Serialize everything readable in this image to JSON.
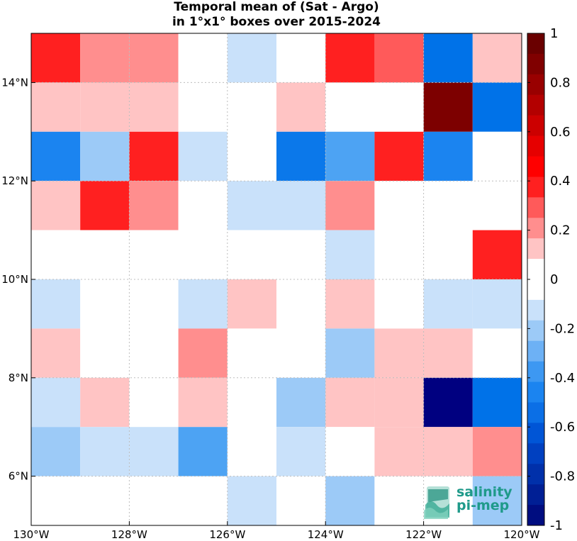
{
  "chart_data": {
    "type": "heatmap",
    "title": "Temporal mean of (Sat - Argo)",
    "subtitle": "in 1°x1° boxes over 2015-2024",
    "x_tick_labels": [
      "130°W",
      "128°W",
      "126°W",
      "124°W",
      "122°W",
      "120°W"
    ],
    "x_ticks": [
      -130,
      -128,
      -126,
      -124,
      -122,
      -120
    ],
    "y_tick_labels": [
      "6°N",
      "8°N",
      "10°N",
      "12°N",
      "14°N"
    ],
    "y_ticks": [
      6,
      8,
      10,
      12,
      14
    ],
    "xlim": [
      -130,
      -120
    ],
    "ylim": [
      5,
      15
    ],
    "grid": true,
    "cell_lon_edges": [
      -130,
      -129,
      -128,
      -127,
      -126,
      -125,
      -124,
      -123,
      -122,
      -121,
      -120
    ],
    "cell_lat_edges_top_down": [
      15,
      14,
      13,
      12,
      11,
      10,
      9,
      8,
      7,
      6,
      5
    ],
    "values": [
      [
        0.4,
        0.25,
        0.25,
        0,
        -0.1,
        0,
        0.4,
        0.35,
        -0.55,
        0.15
      ],
      [
        0.15,
        0.15,
        0.15,
        0,
        0,
        0.15,
        0,
        0,
        0.95,
        -0.55
      ],
      [
        -0.45,
        -0.25,
        0.4,
        -0.1,
        0,
        -0.5,
        -0.35,
        0.4,
        -0.45,
        0
      ],
      [
        0.15,
        0.4,
        0.25,
        0,
        -0.1,
        -0.1,
        0.25,
        0,
        0,
        0
      ],
      [
        0,
        0,
        0,
        0,
        0,
        0,
        -0.1,
        0,
        0,
        0.4
      ],
      [
        -0.1,
        0,
        0,
        -0.1,
        0.15,
        0,
        0.15,
        0,
        -0.1,
        -0.1
      ],
      [
        0.15,
        0,
        0,
        0.25,
        0,
        0,
        -0.25,
        0.15,
        0.15,
        0
      ],
      [
        -0.1,
        0.15,
        0,
        0.15,
        0,
        -0.25,
        0.15,
        0.15,
        -0.95,
        -0.55
      ],
      [
        -0.25,
        -0.1,
        -0.1,
        -0.35,
        0,
        -0.1,
        0,
        0.15,
        0.15,
        0.25
      ],
      [
        0,
        0,
        0,
        0,
        -0.1,
        0,
        -0.25,
        0,
        0,
        -0.25
      ]
    ],
    "colorbar": {
      "range": [
        -1,
        1
      ],
      "tick_values": [
        1,
        0.8,
        0.6,
        0.4,
        0.2,
        0,
        -0.2,
        -0.4,
        -0.6,
        -0.8,
        -1
      ],
      "tick_labels": [
        "1",
        "0.8",
        "0.6",
        "0.4",
        "0.2",
        "0",
        "-0.2",
        "-0.4",
        "-0.6",
        "-0.8",
        "-1"
      ],
      "colors_top_down": [
        "#6a0000",
        "#800000",
        "#990000",
        "#b30000",
        "#cc0000",
        "#e60000",
        "#ff0000",
        "#ff2020",
        "#ff5a5a",
        "#ff8e8e",
        "#ffc4c4",
        "#ffffff",
        "#ffffff",
        "#c9e1fa",
        "#9ccaf7",
        "#6db1f5",
        "#3d98f2",
        "#1b84f0",
        "#0b6fe6",
        "#0055d6",
        "#0040c0",
        "#0030aa",
        "#001f95",
        "#000d80"
      ],
      "color_of_value": [
        {
          "value": 0.95,
          "color": "#7d0000"
        },
        {
          "value": 0.4,
          "color": "#ff2020"
        },
        {
          "value": 0.35,
          "color": "#ff5a5a"
        },
        {
          "value": 0.25,
          "color": "#ff8e8e"
        },
        {
          "value": 0.15,
          "color": "#ffc4c4"
        },
        {
          "value": 0,
          "color": "#ffffff"
        },
        {
          "value": -0.1,
          "color": "#c9e1fa"
        },
        {
          "value": -0.25,
          "color": "#9ccaf7"
        },
        {
          "value": -0.35,
          "color": "#4da3f3"
        },
        {
          "value": -0.45,
          "color": "#1b84f0"
        },
        {
          "value": -0.5,
          "color": "#0b78ea"
        },
        {
          "value": -0.55,
          "color": "#0072e8"
        },
        {
          "value": -0.95,
          "color": "#000080"
        }
      ]
    }
  },
  "logo": {
    "line1": "salinity",
    "line2": "pi-mep"
  }
}
